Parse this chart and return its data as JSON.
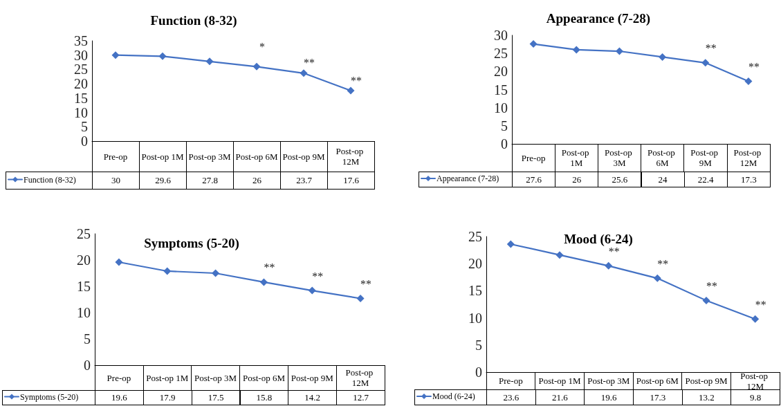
{
  "chart_data": [
    {
      "type": "line",
      "title": "Function (8-32)",
      "categories": [
        "Pre-op",
        "Post-op 1M",
        "Post-op 3M",
        "Post-op 6M",
        "Post-op 9M",
        "Post-op 12M"
      ],
      "series": [
        {
          "name": "Function (8-32)",
          "color": "#4472c4",
          "values": [
            30,
            29.6,
            27.8,
            26,
            23.7,
            17.6
          ]
        }
      ],
      "ylim": [
        0,
        35
      ],
      "yticks": [
        0,
        5,
        10,
        15,
        20,
        25,
        30,
        35
      ],
      "grid": false,
      "legend": "bottom left",
      "marker": "diamond",
      "line_style": "solid",
      "data_labels": true,
      "annotations": [
        {
          "text": "*",
          "x": "Post-op 6M",
          "y": 26
        },
        {
          "text": "**",
          "x": "Post-op 9M",
          "y": 23.7
        },
        {
          "text": "**",
          "x": "Post-op 12M",
          "y": 17.6
        }
      ]
    },
    {
      "type": "line",
      "title": "Appearance (7-28)",
      "categories": [
        "Pre-op",
        "Post-op 1M",
        "Post-op 3M",
        "Post-op 6M",
        "Post-op 9M",
        "Post-op 12M"
      ],
      "series": [
        {
          "name": "Appearance (7-28)",
          "color": "#4472c4",
          "values": [
            27.6,
            26,
            25.6,
            24,
            22.4,
            17.3
          ]
        }
      ],
      "ylim": [
        0,
        30
      ],
      "yticks": [
        0,
        5,
        10,
        15,
        20,
        25,
        30
      ],
      "grid": false,
      "legend": "bottom left",
      "marker": "diamond",
      "line_style": "solid",
      "data_labels": true,
      "annotations": [
        {
          "text": "**",
          "x": "Post-op 9M",
          "y": 22.4
        },
        {
          "text": "**",
          "x": "Post-op 12M",
          "y": 17.3
        }
      ]
    },
    {
      "type": "line",
      "title": "Symptoms (5-20)",
      "categories": [
        "Pre-op",
        "Post-op 1M",
        "Post-op 3M",
        "Post-op 6M",
        "Post-op 9M",
        "Post-op 12M"
      ],
      "series": [
        {
          "name": "Symptoms (5-20)",
          "color": "#4472c4",
          "values": [
            19.6,
            17.9,
            17.5,
            15.8,
            14.2,
            12.7
          ]
        }
      ],
      "ylim": [
        0,
        25
      ],
      "yticks": [
        0,
        5,
        10,
        15,
        20,
        25
      ],
      "grid": false,
      "legend": "bottom left",
      "marker": "diamond",
      "line_style": "solid",
      "data_labels": true,
      "annotations": [
        {
          "text": "**",
          "x": "Post-op 6M",
          "y": 15.8
        },
        {
          "text": "**",
          "x": "Post-op 9M",
          "y": 14.2
        },
        {
          "text": "**",
          "x": "Post-op 12M",
          "y": 12.7
        }
      ]
    },
    {
      "type": "line",
      "title": "Mood (6-24)",
      "categories": [
        "Pre-op",
        "Post-op 1M",
        "Post-op 3M",
        "Post-op 6M",
        "Post-op 9M",
        "Post-op 12M"
      ],
      "series": [
        {
          "name": "Mood (6-24)",
          "color": "#4472c4",
          "values": [
            23.6,
            21.6,
            19.6,
            17.3,
            13.2,
            9.8
          ]
        }
      ],
      "ylim": [
        0,
        25
      ],
      "yticks": [
        0,
        5,
        10,
        15,
        20,
        25
      ],
      "grid": false,
      "legend": "bottom left",
      "marker": "diamond",
      "line_style": "solid",
      "data_labels": true,
      "annotations": [
        {
          "text": "**",
          "x": "Post-op 3M",
          "y": 19.6
        },
        {
          "text": "**",
          "x": "Post-op 6M",
          "y": 17.3
        },
        {
          "text": "**",
          "x": "Post-op 9M",
          "y": 13.2
        },
        {
          "text": "**",
          "x": "Post-op 12M",
          "y": 9.8
        }
      ]
    }
  ]
}
